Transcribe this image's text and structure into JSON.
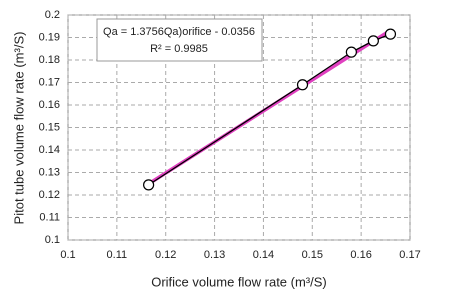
{
  "chart_data": {
    "type": "scatter",
    "annotation": [
      "Qa = 1.3756Qa)orifice - 0.0356",
      "R² = 0.9985"
    ],
    "x_label": "Orifice volume flow rate (m³/S)",
    "y_label": "Pitot  tube  volume flow rate (m³/S)",
    "series": [
      {
        "color": "#000000",
        "trendline_color": "#e040c0",
        "x": [
          0.1165,
          0.148,
          0.158,
          0.1625,
          0.166
        ],
        "values": [
          0.1245,
          0.169,
          0.1835,
          0.1885,
          0.1915
        ]
      }
    ],
    "xlim": [
      0.1,
      0.17
    ],
    "xticks": [
      0.1,
      0.11,
      0.12,
      0.13,
      0.14,
      0.15,
      0.16,
      0.17
    ],
    "ylim": [
      0.1,
      0.2
    ],
    "yticks": [
      0.1,
      0.11,
      0.12,
      0.13,
      0.14,
      0.15,
      0.16,
      0.17,
      0.18,
      0.19,
      0.2
    ],
    "grid": true
  }
}
